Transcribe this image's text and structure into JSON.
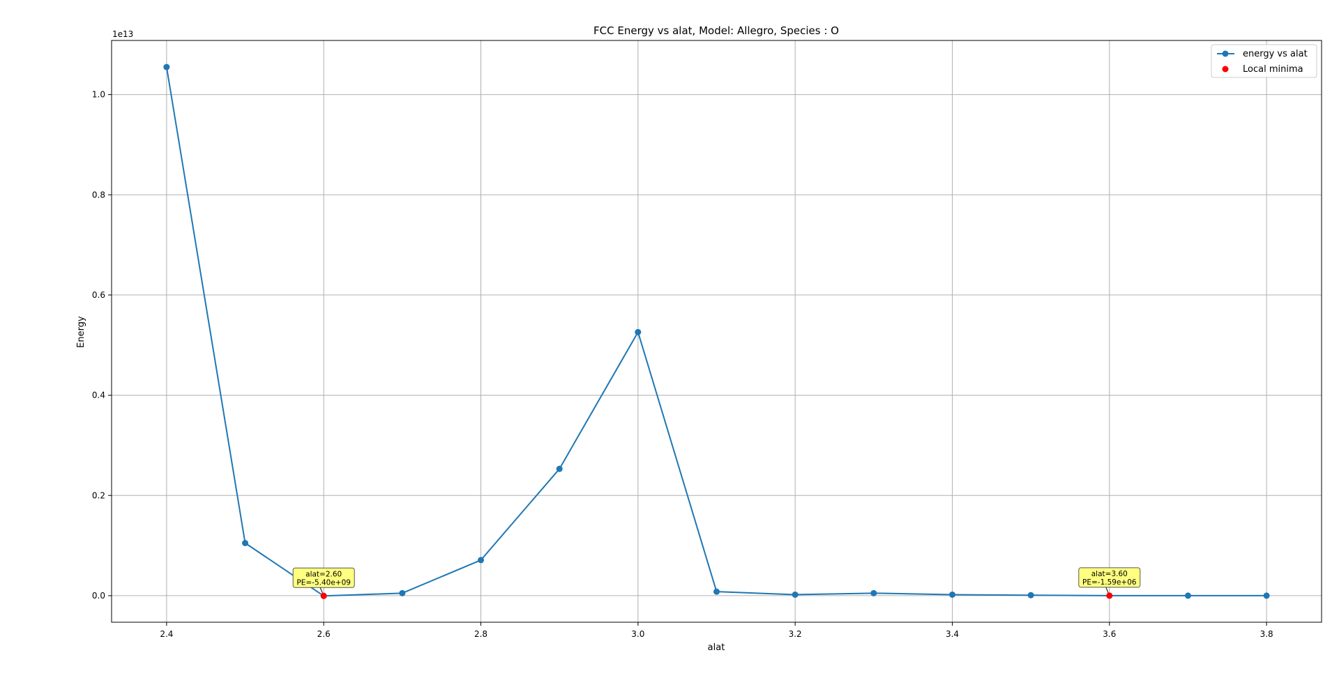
{
  "chart_data": {
    "type": "line",
    "title": "FCC Energy vs alat, Model: Allegro, Species :  O",
    "xlabel": "alat",
    "ylabel": "Energy",
    "y_offset_label": "1e13",
    "xlim": [
      2.33,
      3.87
    ],
    "ylim": [
      -0.053,
      1.108
    ],
    "x_ticks": [
      2.4,
      2.6,
      2.8,
      3.0,
      3.2,
      3.4,
      3.6,
      3.8
    ],
    "x_tick_labels": [
      "2.4",
      "2.6",
      "2.8",
      "3.0",
      "3.2",
      "3.4",
      "3.6",
      "3.8"
    ],
    "y_ticks": [
      0.0,
      0.2,
      0.4,
      0.6,
      0.8,
      1.0
    ],
    "y_tick_labels": [
      "0.0",
      "0.2",
      "0.4",
      "0.6",
      "0.8",
      "1.0"
    ],
    "grid": true,
    "legend_position": "top-right",
    "series": [
      {
        "name": "energy vs alat",
        "color": "#1f77b4",
        "x": [
          2.4,
          2.5,
          2.6,
          2.7,
          2.8,
          2.9,
          3.0,
          3.1,
          3.2,
          3.3,
          3.4,
          3.5,
          3.6,
          3.7,
          3.8
        ],
        "y": [
          1.055,
          0.105,
          -0.0005,
          0.005,
          0.071,
          0.253,
          0.526,
          0.008,
          0.002,
          0.005,
          0.002,
          0.001,
          0.0,
          0.0,
          0.0
        ]
      }
    ],
    "minima": {
      "name": "Local minima",
      "color": "#ff0000",
      "points": [
        {
          "x": 2.6,
          "y": -0.0005,
          "label_line1": "alat=2.60",
          "label_line2": "PE=-5.40e+09"
        },
        {
          "x": 3.6,
          "y": 0.0,
          "label_line1": "alat=3.60",
          "label_line2": "PE=-1.59e+06"
        }
      ]
    },
    "annotation_box_color": "#ffff80"
  }
}
